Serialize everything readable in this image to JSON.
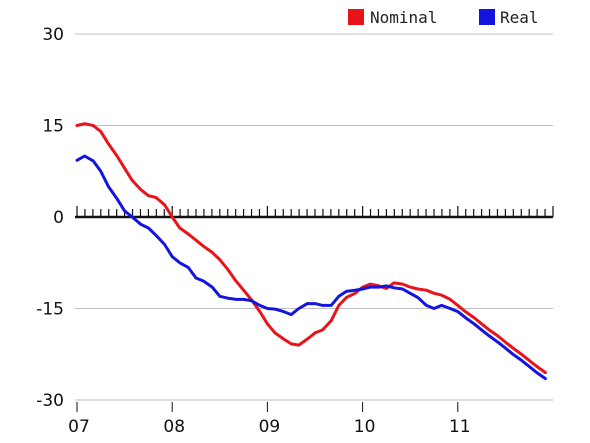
{
  "colors": {
    "nominal": "#e8141a",
    "real": "#1414e0",
    "grid": "#bfbfbf",
    "zero_line": "#111111"
  },
  "chart_data": {
    "type": "line",
    "title": "",
    "xlabel": "",
    "ylabel": "",
    "xlim": [
      2007.0,
      2012.0
    ],
    "ylim": [
      -30,
      30
    ],
    "y_ticks": [
      30,
      15,
      0,
      -15,
      -30
    ],
    "y_tick_labels": [
      "30",
      "15",
      "0",
      "-15",
      "-30"
    ],
    "x_ticks": [
      2007,
      2008,
      2009,
      2010,
      2011
    ],
    "x_tick_labels": [
      "07",
      "08",
      "09",
      "10",
      "11"
    ],
    "grid": true,
    "legend_position": "top-right",
    "series": [
      {
        "name": "Nominal",
        "color": "#e8141a",
        "x": [
          2007.0,
          2007.08,
          2007.17,
          2007.25,
          2007.33,
          2007.42,
          2007.5,
          2007.58,
          2007.67,
          2007.75,
          2007.83,
          2007.92,
          2008.0,
          2008.08,
          2008.17,
          2008.25,
          2008.33,
          2008.42,
          2008.5,
          2008.58,
          2008.67,
          2008.75,
          2008.83,
          2008.92,
          2009.0,
          2009.08,
          2009.17,
          2009.25,
          2009.33,
          2009.42,
          2009.5,
          2009.58,
          2009.67,
          2009.75,
          2009.83,
          2009.92,
          2010.0,
          2010.08,
          2010.17,
          2010.25,
          2010.33,
          2010.42,
          2010.5,
          2010.58,
          2010.67,
          2010.75,
          2010.83,
          2010.92,
          2011.0,
          2011.08,
          2011.17,
          2011.25,
          2011.33,
          2011.42,
          2011.5,
          2011.58,
          2011.67,
          2011.75,
          2011.83,
          2011.92
        ],
        "values": [
          15,
          15.3,
          15,
          14,
          12,
          10,
          8,
          6,
          4.5,
          3.5,
          3.2,
          2,
          0,
          -1.8,
          -2.8,
          -3.8,
          -4.8,
          -5.8,
          -7,
          -8.5,
          -10.5,
          -12,
          -13.5,
          -15.5,
          -17.5,
          -19,
          -20,
          -20.8,
          -21,
          -20,
          -19,
          -18.5,
          -17,
          -14.5,
          -13.2,
          -12.5,
          -11.5,
          -11,
          -11.3,
          -11.7,
          -10.8,
          -11,
          -11.5,
          -11.8,
          -12,
          -12.5,
          -12.8,
          -13.5,
          -14.5,
          -15.5,
          -16.5,
          -17.5,
          -18.5,
          -19.5,
          -20.5,
          -21.5,
          -22.5,
          -23.5,
          -24.5,
          -25.5
        ]
      },
      {
        "name": "Real",
        "color": "#1414e0",
        "x": [
          2007.0,
          2007.08,
          2007.17,
          2007.25,
          2007.33,
          2007.42,
          2007.5,
          2007.58,
          2007.67,
          2007.75,
          2007.83,
          2007.92,
          2008.0,
          2008.08,
          2008.17,
          2008.25,
          2008.33,
          2008.42,
          2008.5,
          2008.58,
          2008.67,
          2008.75,
          2008.83,
          2008.92,
          2009.0,
          2009.08,
          2009.17,
          2009.25,
          2009.33,
          2009.42,
          2009.5,
          2009.58,
          2009.67,
          2009.75,
          2009.83,
          2009.92,
          2010.0,
          2010.08,
          2010.17,
          2010.25,
          2010.33,
          2010.42,
          2010.5,
          2010.58,
          2010.67,
          2010.75,
          2010.83,
          2010.92,
          2011.0,
          2011.08,
          2011.17,
          2011.25,
          2011.33,
          2011.42,
          2011.5,
          2011.58,
          2011.67,
          2011.75,
          2011.83,
          2011.92
        ],
        "values": [
          9.3,
          10,
          9.2,
          7.5,
          5,
          3,
          1,
          0,
          -1.2,
          -1.8,
          -3,
          -4.5,
          -6.5,
          -7.5,
          -8.3,
          -10,
          -10.5,
          -11.5,
          -13,
          -13.3,
          -13.5,
          -13.5,
          -13.7,
          -14.5,
          -15,
          -15.1,
          -15.5,
          -16,
          -15,
          -14.2,
          -14.2,
          -14.5,
          -14.5,
          -13,
          -12.2,
          -12,
          -11.8,
          -11.5,
          -11.5,
          -11.3,
          -11.6,
          -11.8,
          -12.5,
          -13.2,
          -14.5,
          -15,
          -14.5,
          -15,
          -15.5,
          -16.5,
          -17.5,
          -18.5,
          -19.5,
          -20.5,
          -21.5,
          -22.5,
          -23.5,
          -24.5,
          -25.5,
          -26.5
        ]
      }
    ]
  }
}
